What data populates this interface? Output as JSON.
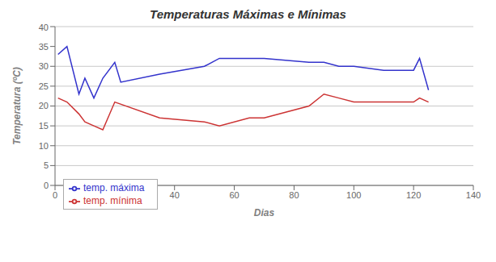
{
  "chart_data": {
    "type": "line",
    "title": "Temperaturas Máximas e Mínimas",
    "xlabel": "Dias",
    "ylabel": "Temperatura (ºC)",
    "xlim": [
      0,
      140
    ],
    "ylim": [
      0,
      40
    ],
    "xticks": [
      0,
      20,
      40,
      60,
      80,
      100,
      120,
      140
    ],
    "yticks": [
      0,
      5,
      10,
      15,
      20,
      25,
      30,
      35,
      40
    ],
    "grid": "y",
    "legend": "lower left",
    "series": [
      {
        "name": "temp. máxima",
        "color": "#3333cc",
        "x": [
          1,
          4,
          8,
          10,
          13,
          16,
          20,
          22,
          35,
          50,
          55,
          65,
          70,
          85,
          90,
          95,
          100,
          110,
          120,
          122,
          125
        ],
        "values": [
          33,
          35,
          23,
          27,
          22,
          27,
          31,
          26,
          28,
          30,
          32,
          32,
          32,
          31,
          31,
          30,
          30,
          29,
          29,
          32,
          24
        ]
      },
      {
        "name": "temp. mínima",
        "color": "#cc3333",
        "x": [
          1,
          4,
          8,
          10,
          13,
          16,
          20,
          35,
          50,
          55,
          65,
          70,
          85,
          90,
          95,
          100,
          110,
          120,
          122,
          125
        ],
        "values": [
          22,
          21,
          18,
          16,
          15,
          14,
          21,
          17,
          16,
          15,
          17,
          17,
          20,
          23,
          22,
          21,
          21,
          21,
          22,
          21
        ]
      }
    ]
  }
}
